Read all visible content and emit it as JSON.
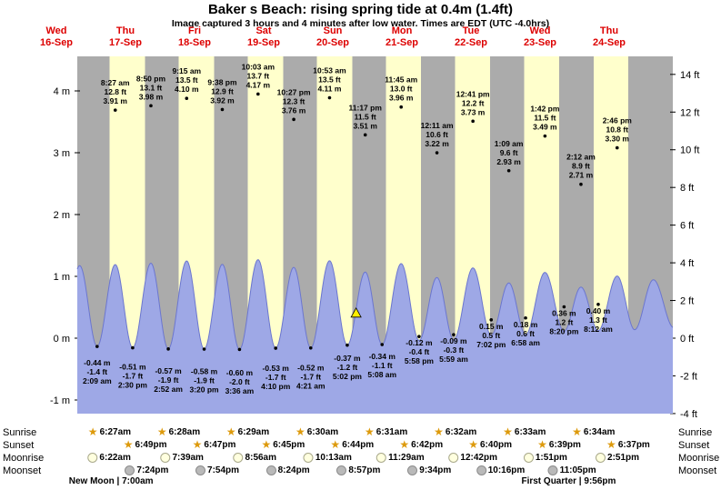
{
  "header": {
    "title": "Baker s Beach: rising  spring tide at 0.4m (1.4ft)",
    "subtitle": "Image captured 3 hours and 4 minutes after low water. Times are EDT (UTC -4.0hrs)"
  },
  "chart_data": {
    "type": "area",
    "title": "Baker s Beach tide curve",
    "legend_position": "none",
    "grid": false,
    "days": [
      {
        "name": "Wed",
        "date": "16-Sep"
      },
      {
        "name": "Thu",
        "date": "17-Sep"
      },
      {
        "name": "Fri",
        "date": "18-Sep"
      },
      {
        "name": "Sat",
        "date": "19-Sep"
      },
      {
        "name": "Sun",
        "date": "20-Sep"
      },
      {
        "name": "Mon",
        "date": "21-Sep"
      },
      {
        "name": "Tue",
        "date": "22-Sep"
      },
      {
        "name": "Wed",
        "date": "23-Sep"
      },
      {
        "name": "Thu",
        "date": "24-Sep"
      }
    ],
    "y_axis_left": {
      "unit": "m",
      "ticks": [
        "4 m",
        "3 m",
        "2 m",
        "1 m",
        "0 m",
        "-1 m"
      ],
      "values": [
        4,
        3,
        2,
        1,
        0,
        -1
      ],
      "range_m": [
        -1.25,
        4.55
      ]
    },
    "y_axis_right": {
      "unit": "ft",
      "ticks": [
        "14 ft",
        "12 ft",
        "10 ft",
        "8 ft",
        "6 ft",
        "4 ft",
        "2 ft",
        "0 ft",
        "-2 ft",
        "-4 ft"
      ],
      "values": [
        14,
        12,
        10,
        8,
        6,
        4,
        2,
        0,
        -2,
        -4
      ]
    },
    "high_tides": [
      {
        "day": 1,
        "hour": 8.45,
        "time": "8:27 am",
        "ft": "12.8 ft",
        "m": "3.91 m",
        "height_m": 3.91
      },
      {
        "day": 1,
        "hour": 20.83,
        "time": "8:50 pm",
        "ft": "13.1 ft",
        "m": "3.98 m",
        "height_m": 3.98
      },
      {
        "day": 2,
        "hour": 9.25,
        "time": "9:15 am",
        "ft": "13.5 ft",
        "m": "4.10 m",
        "height_m": 4.1
      },
      {
        "day": 2,
        "hour": 21.63,
        "time": "9:38 pm",
        "ft": "12.9 ft",
        "m": "3.92 m",
        "height_m": 3.92
      },
      {
        "day": 3,
        "hour": 10.05,
        "time": "10:03 am",
        "ft": "13.7 ft",
        "m": "4.17 m",
        "height_m": 4.17
      },
      {
        "day": 3,
        "hour": 22.45,
        "time": "10:27 pm",
        "ft": "12.3 ft",
        "m": "3.76 m",
        "height_m": 3.76
      },
      {
        "day": 4,
        "hour": 10.88,
        "time": "10:53 am",
        "ft": "13.5 ft",
        "m": "4.11 m",
        "height_m": 4.11
      },
      {
        "day": 4,
        "hour": 23.28,
        "time": "11:17 pm",
        "ft": "11.5 ft",
        "m": "3.51 m",
        "height_m": 3.51
      },
      {
        "day": 5,
        "hour": 11.75,
        "time": "11:45 am",
        "ft": "13.0 ft",
        "m": "3.96 m",
        "height_m": 3.96
      },
      {
        "day": 6,
        "hour": 0.18,
        "time": "12:11 am",
        "ft": "10.6 ft",
        "m": "3.22 m",
        "height_m": 3.22
      },
      {
        "day": 6,
        "hour": 12.68,
        "time": "12:41 pm",
        "ft": "12.2 ft",
        "m": "3.73 m",
        "height_m": 3.73
      },
      {
        "day": 7,
        "hour": 1.15,
        "time": "1:09 am",
        "ft": "9.6 ft",
        "m": "2.93 m",
        "height_m": 2.93
      },
      {
        "day": 7,
        "hour": 13.7,
        "time": "1:42 pm",
        "ft": "11.5 ft",
        "m": "3.49 m",
        "height_m": 3.49
      },
      {
        "day": 8,
        "hour": 2.2,
        "time": "2:12 am",
        "ft": "8.9 ft",
        "m": "2.71 m",
        "height_m": 2.71
      },
      {
        "day": 8,
        "hour": 14.77,
        "time": "2:46 pm",
        "ft": "10.8 ft",
        "m": "3.30 m",
        "height_m": 3.3
      }
    ],
    "low_tides": [
      {
        "day": 1,
        "hour": 2.15,
        "time": "2:09 am",
        "m": "-0.44 m",
        "ft": "-1.4 ft",
        "height_m": -0.44
      },
      {
        "day": 1,
        "hour": 14.5,
        "time": "2:30 pm",
        "m": "-0.51 m",
        "ft": "-1.7 ft",
        "height_m": -0.51
      },
      {
        "day": 2,
        "hour": 2.87,
        "time": "2:52 am",
        "m": "-0.57 m",
        "ft": "-1.9 ft",
        "height_m": -0.57
      },
      {
        "day": 2,
        "hour": 15.33,
        "time": "3:20 pm",
        "m": "-0.58 m",
        "ft": "-1.9 ft",
        "height_m": -0.58
      },
      {
        "day": 3,
        "hour": 3.6,
        "time": "3:36 am",
        "m": "-0.60 m",
        "ft": "-2.0 ft",
        "height_m": -0.6
      },
      {
        "day": 3,
        "hour": 16.17,
        "time": "4:10 pm",
        "m": "-0.53 m",
        "ft": "-1.7 ft",
        "height_m": -0.53
      },
      {
        "day": 4,
        "hour": 4.35,
        "time": "4:21 am",
        "m": "-0.52 m",
        "ft": "-1.7 ft",
        "height_m": -0.52
      },
      {
        "day": 4,
        "hour": 17.03,
        "time": "5:02 pm",
        "m": "-0.37 m",
        "ft": "-1.2 ft",
        "height_m": -0.37
      },
      {
        "day": 5,
        "hour": 5.13,
        "time": "5:08 am",
        "m": "-0.34 m",
        "ft": "-1.1 ft",
        "height_m": -0.34
      },
      {
        "day": 5,
        "hour": 17.97,
        "time": "5:58 pm",
        "m": "-0.12 m",
        "ft": "-0.4 ft",
        "height_m": -0.12
      },
      {
        "day": 6,
        "hour": 5.98,
        "time": "5:59 am",
        "m": "-0.09 m",
        "ft": "-0.3 ft",
        "height_m": -0.09
      },
      {
        "day": 6,
        "hour": 19.03,
        "time": "7:02 pm",
        "m": "0.15 m",
        "ft": "0.5 ft",
        "height_m": 0.15
      },
      {
        "day": 7,
        "hour": 6.97,
        "time": "6:58 am",
        "m": "0.18 m",
        "ft": "0.6 ft",
        "height_m": 0.18
      },
      {
        "day": 7,
        "hour": 20.33,
        "time": "8:20 pm",
        "m": "0.36 m",
        "ft": "1.2 ft",
        "height_m": 0.36
      },
      {
        "day": 8,
        "hour": 8.2,
        "time": "8:12 am",
        "m": "0.40 m",
        "ft": "1.3 ft",
        "height_m": 0.4
      }
    ],
    "unlabeled_extremes": [
      {
        "day": 0,
        "hour": 13.9,
        "height_m": -0.35
      },
      {
        "day": 0,
        "hour": 20.1,
        "height_m": 3.85
      },
      {
        "day": 8,
        "hour": 20.85,
        "height_m": 0.45
      },
      {
        "day": 9,
        "hour": 3.35,
        "height_m": 3.1
      },
      {
        "day": 9,
        "hour": 10.5,
        "height_m": 0.55
      }
    ],
    "marker": {
      "day": 4,
      "hour": 20.1,
      "height_m": 0.4,
      "meaning": "current tide 0.4m and rising"
    },
    "colors": {
      "night": "#ababab",
      "day": "#ffffcc",
      "tide_fill": "#9ea8e6",
      "tide_stroke": "#6b76cf",
      "day_label": "#dd0000",
      "marker": "#ffee00"
    }
  },
  "sun_moon": {
    "rows": [
      {
        "label": "Sunrise",
        "icon": "sunrise-star-icon",
        "entries": [
          {
            "day": 1,
            "time": "6:27am"
          },
          {
            "day": 2,
            "time": "6:28am"
          },
          {
            "day": 3,
            "time": "6:29am"
          },
          {
            "day": 4,
            "time": "6:30am"
          },
          {
            "day": 5,
            "time": "6:31am"
          },
          {
            "day": 6,
            "time": "6:32am"
          },
          {
            "day": 7,
            "time": "6:33am"
          },
          {
            "day": 8,
            "time": "6:34am"
          }
        ]
      },
      {
        "label": "Sunset",
        "icon": "sunset-star-icon",
        "entries": [
          {
            "day": 1,
            "time": "6:49pm"
          },
          {
            "day": 2,
            "time": "6:47pm"
          },
          {
            "day": 3,
            "time": "6:45pm"
          },
          {
            "day": 4,
            "time": "6:44pm"
          },
          {
            "day": 5,
            "time": "6:42pm"
          },
          {
            "day": 6,
            "time": "6:40pm"
          },
          {
            "day": 7,
            "time": "6:39pm"
          },
          {
            "day": 8,
            "time": "6:37pm"
          }
        ]
      },
      {
        "label": "Moonrise",
        "icon": "moonrise-icon",
        "entries": [
          {
            "day": 1,
            "time": "6:22am"
          },
          {
            "day": 2,
            "time": "7:39am"
          },
          {
            "day": 3,
            "time": "8:56am"
          },
          {
            "day": 4,
            "time": "10:13am"
          },
          {
            "day": 5,
            "time": "11:29am"
          },
          {
            "day": 6,
            "time": "12:42pm"
          },
          {
            "day": 7,
            "time": "1:51pm"
          },
          {
            "day": 8,
            "time": "2:51pm"
          }
        ]
      },
      {
        "label": "Moonset",
        "icon": "moonset-icon",
        "entries": [
          {
            "day": 1,
            "time": "7:24pm"
          },
          {
            "day": 2,
            "time": "7:54pm"
          },
          {
            "day": 3,
            "time": "8:24pm"
          },
          {
            "day": 4,
            "time": "8:57pm"
          },
          {
            "day": 5,
            "time": "9:34pm"
          },
          {
            "day": 6,
            "time": "10:16pm"
          },
          {
            "day": 7,
            "time": "11:05pm"
          }
        ]
      }
    ],
    "phase_notes": [
      {
        "text": "New Moon | 7:00am",
        "day": 1,
        "hour": 7.0
      },
      {
        "text": "First Quarter | 9:56pm",
        "day": 7,
        "hour": 21.93
      }
    ]
  }
}
